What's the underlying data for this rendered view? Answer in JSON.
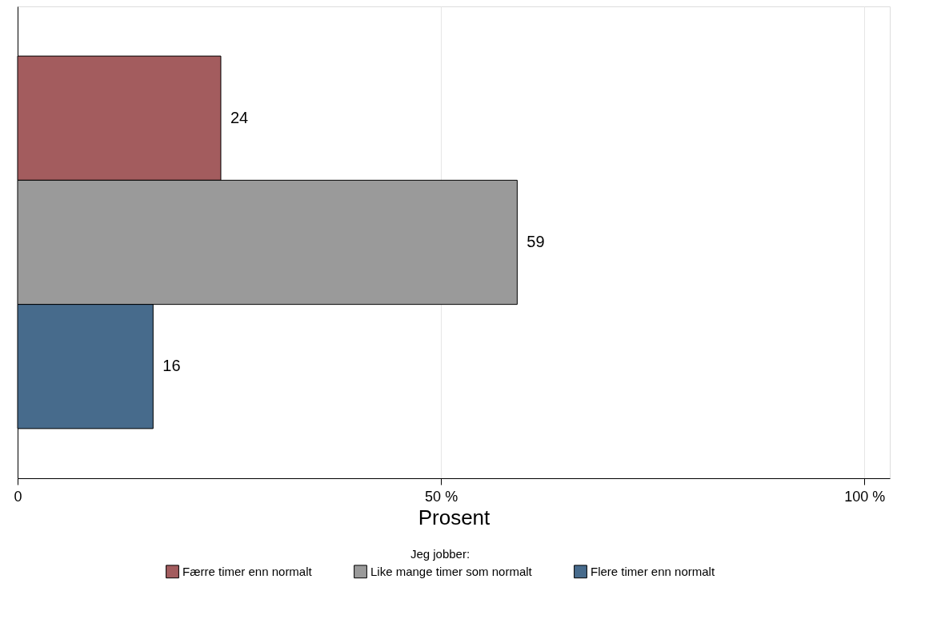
{
  "chart_data": {
    "type": "bar",
    "orientation": "horizontal",
    "xlabel": "Prosent",
    "legend_title": "Jeg jobber:",
    "categories": [
      null,
      null,
      null
    ],
    "series": [
      {
        "name": "Færre timer enn normalt",
        "color": "#a35c5e",
        "values": [
          24,
          null,
          null
        ]
      },
      {
        "name": "Like mange timer som normalt",
        "color": "#9a9a9a",
        "values": [
          null,
          59,
          null
        ]
      },
      {
        "name": "Flere timer enn normalt",
        "color": "#476b8c",
        "values": [
          null,
          null,
          16
        ]
      }
    ],
    "xlim": [
      0,
      103
    ],
    "xticks": [
      0,
      {
        "value": 50,
        "label": "50 %"
      },
      {
        "value": 100,
        "label": "100 %"
      }
    ],
    "grid": "x",
    "legend": "bottom",
    "data_labels": true,
    "tick_labels": "x"
  }
}
